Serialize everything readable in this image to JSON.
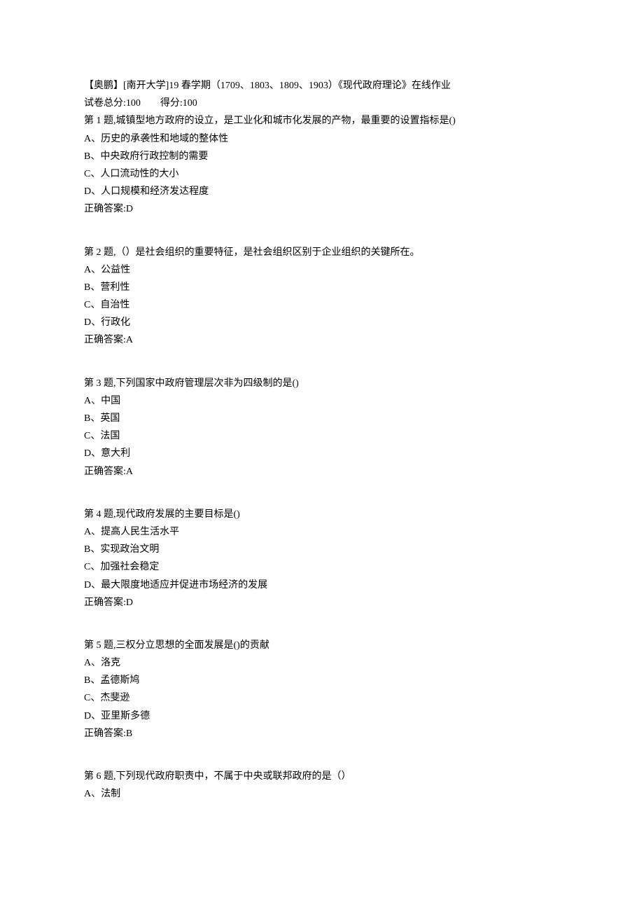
{
  "header": {
    "title": "【奥鹏】[南开大学]19 春学期（1709、1803、1809、1903）《现代政府理论》在线作业",
    "score_total_label": "试卷总分:100",
    "score_obtained_label": "得分:100"
  },
  "questions": [
    {
      "stem": "第 1 题,城镇型地方政府的设立，是工业化和城市化发展的产物，最重要的设置指标是()",
      "options": [
        "A、历史的承袭性和地域的整体性",
        "B、中央政府行政控制的需要",
        "C、人口流动性的大小",
        "D、人口规模和经济发达程度"
      ],
      "answer": "正确答案:D"
    },
    {
      "stem": "第 2 题,（）是社会组织的重要特征，是社会组织区别于企业组织的关键所在。",
      "options": [
        "A、公益性",
        "B、营利性",
        "C、自治性",
        "D、行政化"
      ],
      "answer": "正确答案:A"
    },
    {
      "stem": "第 3 题,下列国家中政府管理层次非为四级制的是()",
      "options": [
        "A、中国",
        "B、英国",
        "C、法国",
        "D、意大利"
      ],
      "answer": "正确答案:A"
    },
    {
      "stem": "第 4 题,现代政府发展的主要目标是()",
      "options": [
        "A、提高人民生活水平",
        "B、实现政治文明",
        "C、加强社会稳定",
        "D、最大限度地适应并促进市场经济的发展"
      ],
      "answer": "正确答案:D"
    },
    {
      "stem": "第 5 题,三权分立思想的全面发展是()的贡献",
      "options": [
        "A、洛克",
        "B、孟德斯鸠",
        "C、杰斐逊",
        "D、亚里斯多德"
      ],
      "answer": "正确答案:B"
    },
    {
      "stem": "第 6 题,下列现代政府职责中，不属于中央或联邦政府的是（）",
      "options": [
        "A、法制"
      ],
      "answer": ""
    }
  ]
}
